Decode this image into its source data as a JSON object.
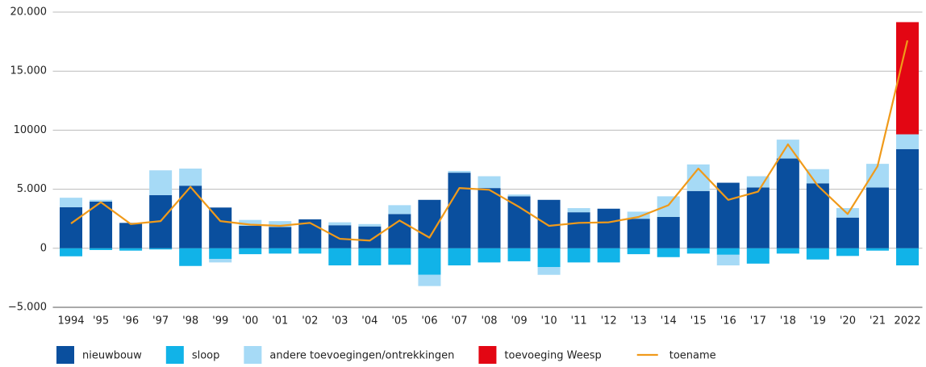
{
  "chart_data": {
    "type": "bar",
    "categories": [
      "1994",
      "'95",
      "'96",
      "'97",
      "'98",
      "'99",
      "'00",
      "'01",
      "'02",
      "'03",
      "'04",
      "'05",
      "'06",
      "'07",
      "'08",
      "'09",
      "'10",
      "'11",
      "'12",
      "'13",
      "'14",
      "'15",
      "'16",
      "'17",
      "'18",
      "'19",
      "'20",
      "'21",
      "2022"
    ],
    "series": [
      {
        "name": "nieuwbouw",
        "color": "#0a4f9e",
        "values": [
          3480,
          3950,
          2150,
          4500,
          5300,
          3450,
          1900,
          1800,
          2450,
          1950,
          1850,
          2900,
          4100,
          6400,
          5100,
          4400,
          4100,
          3050,
          3350,
          2500,
          2650,
          4850,
          5550,
          5150,
          7600,
          5500,
          2600,
          5150,
          8400
        ]
      },
      {
        "name": "sloop",
        "color": "#11b3e8",
        "values": [
          -680,
          -150,
          -200,
          -100,
          -1500,
          -900,
          -500,
          -450,
          -450,
          -1450,
          -1450,
          -1400,
          -2250,
          -1450,
          -1200,
          -1100,
          -1600,
          -1200,
          -1200,
          -500,
          -750,
          -450,
          -550,
          -1300,
          -450,
          -950,
          -650,
          -200,
          -1450
        ]
      },
      {
        "name": "andere toevoegingen/ontrekkingen",
        "color": "#a6daf6",
        "values": [
          800,
          150,
          0,
          2100,
          1450,
          -300,
          500,
          500,
          0,
          250,
          200,
          750,
          -950,
          150,
          1000,
          150,
          -650,
          350,
          0,
          600,
          1750,
          2250,
          -900,
          950,
          1600,
          1200,
          800,
          2000,
          1250
        ]
      },
      {
        "name": "toevoeging Weesp",
        "color": "#e30613",
        "values": [
          null,
          null,
          null,
          null,
          null,
          null,
          null,
          null,
          null,
          null,
          null,
          null,
          null,
          null,
          null,
          null,
          null,
          null,
          null,
          null,
          null,
          null,
          null,
          null,
          null,
          null,
          null,
          null,
          9500
        ]
      },
      {
        "name": "toename",
        "type": "line",
        "color": "#f09a1a",
        "values": [
          2100,
          3900,
          2050,
          2300,
          5200,
          2300,
          2000,
          1900,
          2150,
          800,
          650,
          2350,
          900,
          5100,
          4950,
          3500,
          1900,
          2150,
          2200,
          2650,
          3650,
          6750,
          4100,
          4800,
          8800,
          5300,
          2900,
          6950,
          17600
        ]
      }
    ],
    "ylim": [
      -5000,
      20000
    ],
    "yticks": [
      {
        "value": -5000,
        "label": "−5.000"
      },
      0,
      {
        "value": 5000,
        "label": "5.000"
      },
      10000,
      {
        "value": 15000,
        "label": "15.000"
      },
      {
        "value": 20000,
        "label": "20.000"
      }
    ],
    "grid": true
  }
}
